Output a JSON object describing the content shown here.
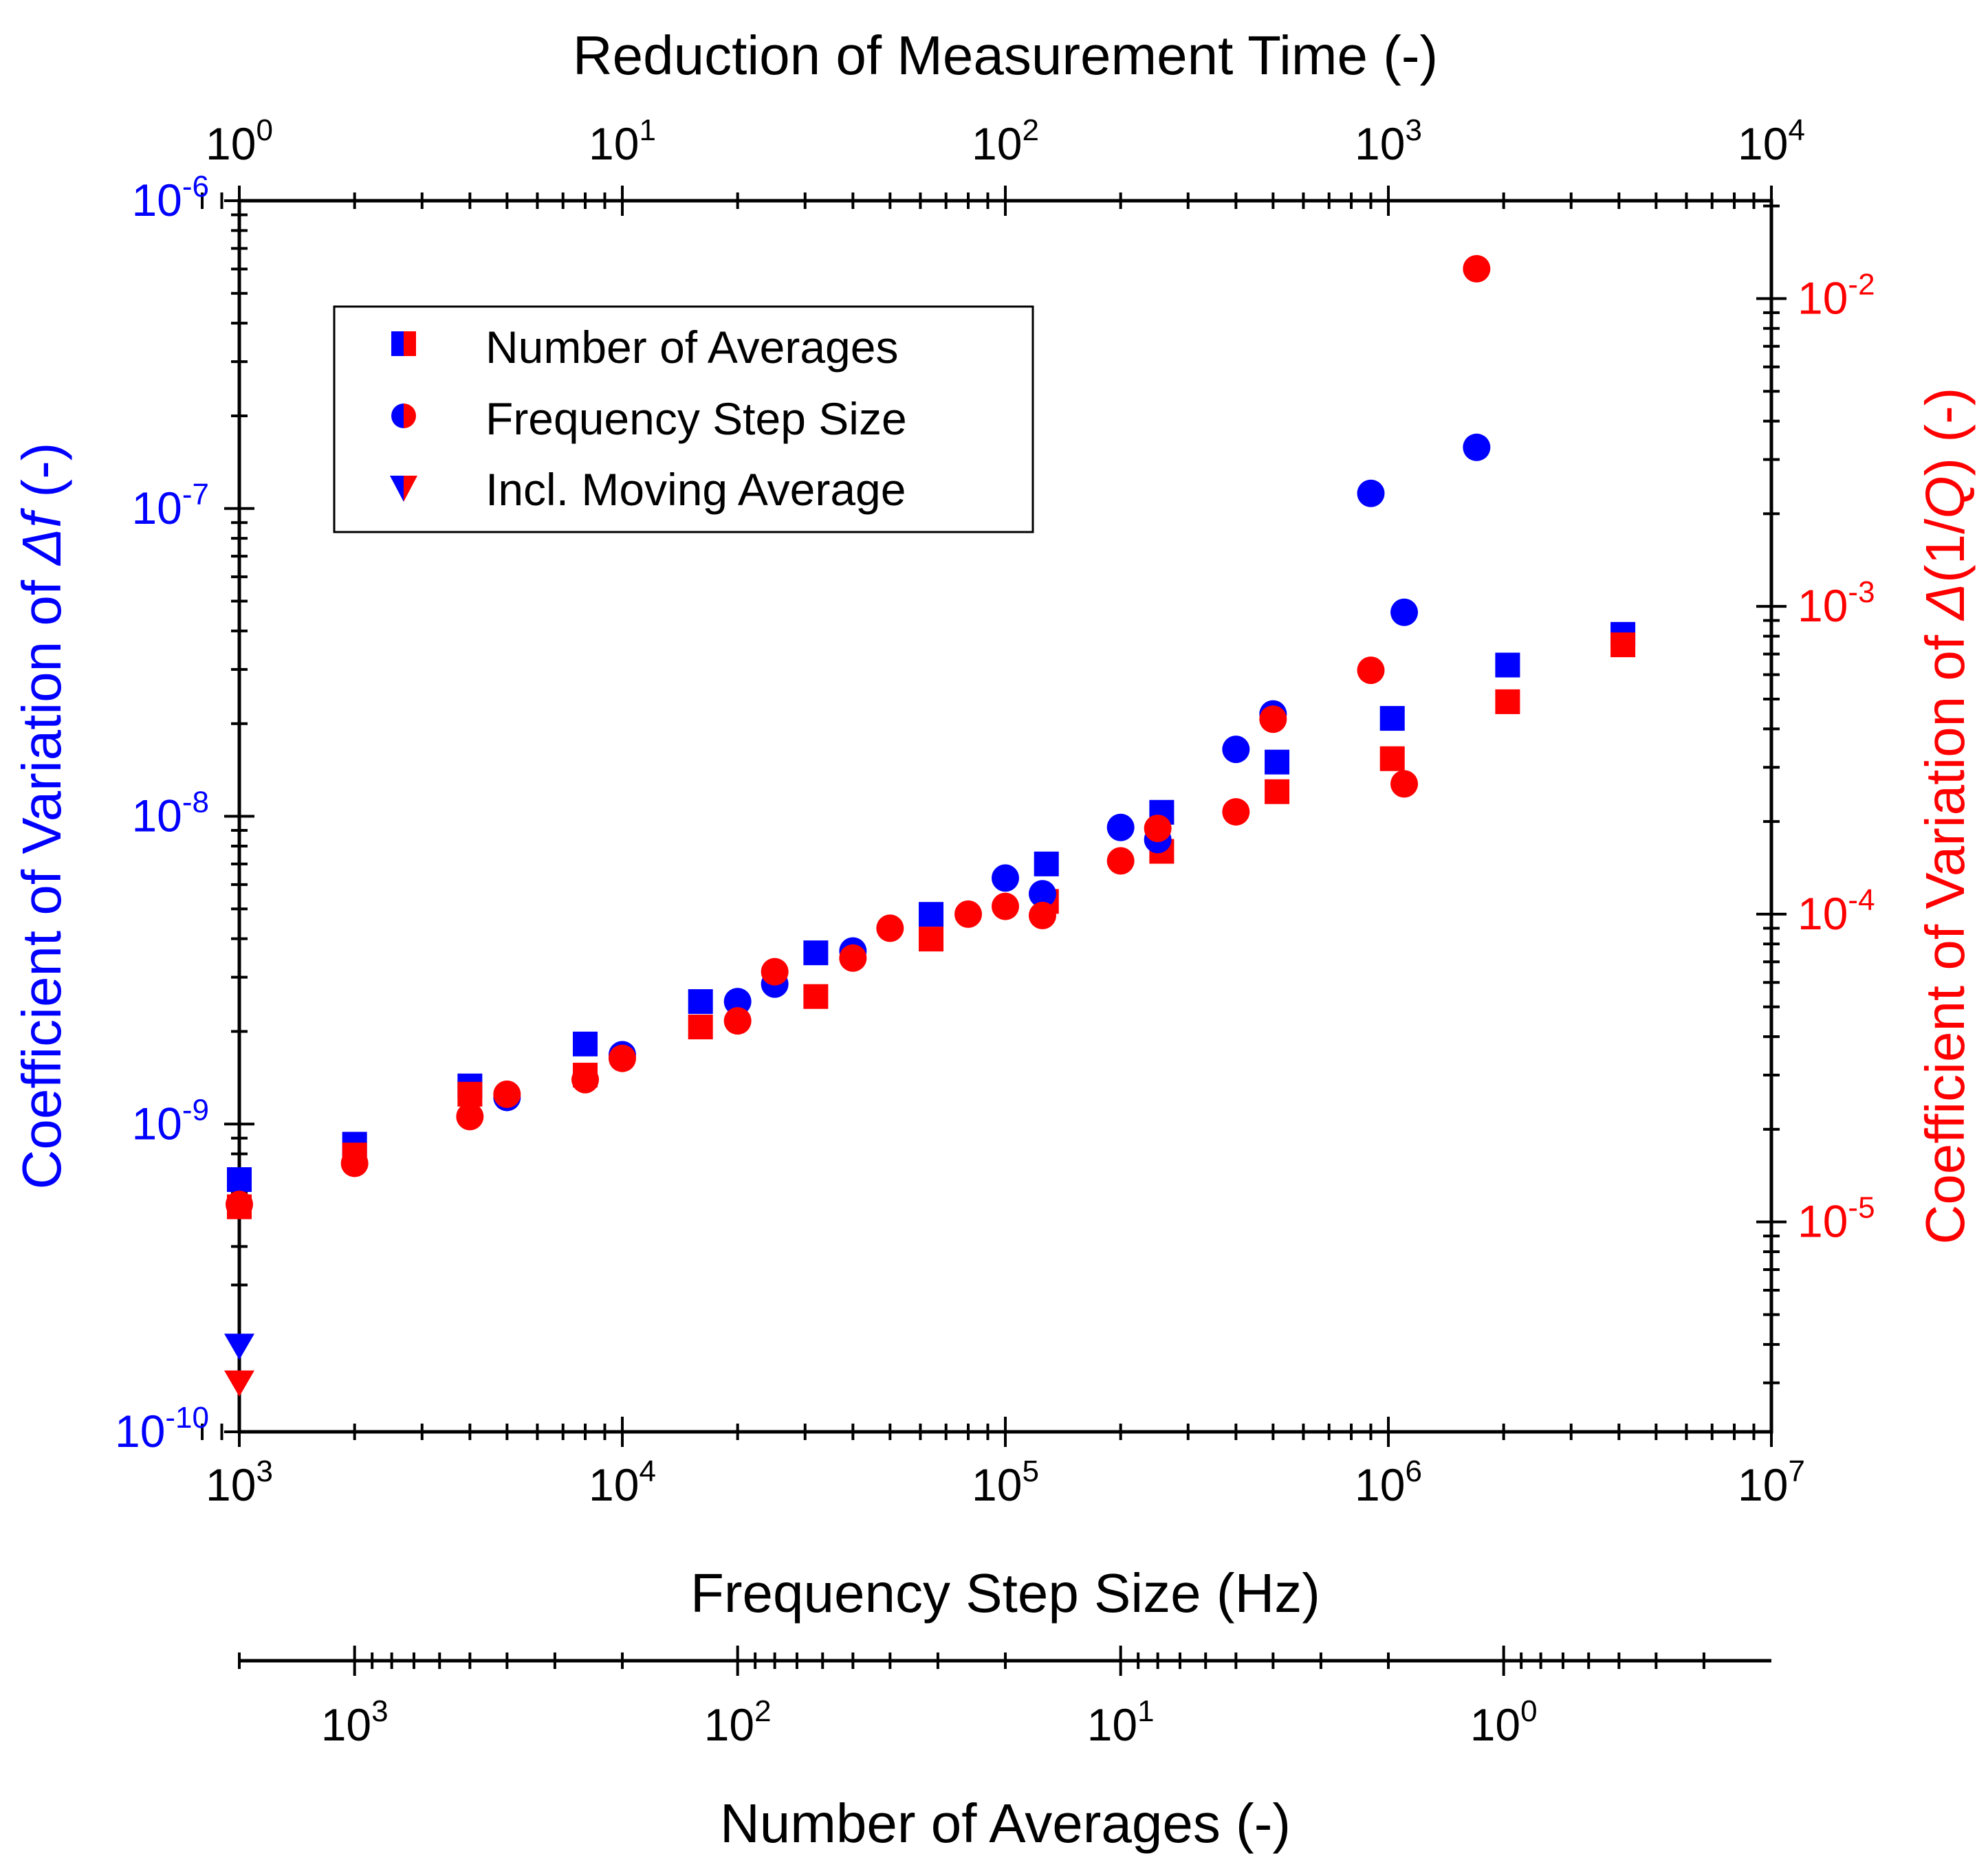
{
  "chart_data": {
    "type": "scatter",
    "colors": {
      "left": "#0000ff",
      "right": "#ff0000",
      "axis": "#000000"
    },
    "top_axis": {
      "title": "Reduction of Measurement Time (-)",
      "scale": "log",
      "range": [
        1,
        10000
      ],
      "ticks": [
        {
          "base": "10",
          "exp": "0"
        },
        {
          "base": "10",
          "exp": "1"
        },
        {
          "base": "10",
          "exp": "2"
        },
        {
          "base": "10",
          "exp": "3"
        },
        {
          "base": "10",
          "exp": "4"
        }
      ]
    },
    "bottom_axis": {
      "title": "Frequency Step Size (Hz)",
      "scale": "log",
      "range": [
        1000,
        10000000
      ],
      "ticks": [
        {
          "base": "10",
          "exp": "3"
        },
        {
          "base": "10",
          "exp": "4"
        },
        {
          "base": "10",
          "exp": "5"
        },
        {
          "base": "10",
          "exp": "6"
        },
        {
          "base": "10",
          "exp": "7"
        }
      ]
    },
    "averages_axis": {
      "title": "Number of Averages (-)",
      "scale": "log",
      "reversed": true,
      "ticks": [
        {
          "base": "10",
          "exp": "3",
          "at_step_hz": 2000
        },
        {
          "base": "10",
          "exp": "2",
          "at_step_hz": 20000
        },
        {
          "base": "10",
          "exp": "1",
          "at_step_hz": 200000
        },
        {
          "base": "10",
          "exp": "0",
          "at_step_hz": 2000000
        }
      ]
    },
    "left_axis": {
      "title_prefix": "Coefficient of Variation of ",
      "title_delta": "Δ",
      "title_var": "f",
      "title_suffix": " (-)",
      "scale": "log",
      "range": [
        1e-10,
        1e-06
      ],
      "ticks": [
        {
          "base": "10",
          "exp": "-6"
        },
        {
          "base": "10",
          "exp": "-7"
        },
        {
          "base": "10",
          "exp": "-8"
        },
        {
          "base": "10",
          "exp": "-9"
        },
        {
          "base": "10",
          "exp": "-10"
        }
      ]
    },
    "right_axis": {
      "title_prefix": "Coefficient of Variation of ",
      "title_delta": "Δ",
      "title_open": "(1/",
      "title_var": "Q",
      "title_close": ")",
      "title_suffix": " (-)",
      "scale": "log",
      "range": [
        2.08e-06,
        0.0208
      ],
      "ticks": [
        {
          "base": "10",
          "exp": "-2"
        },
        {
          "base": "10",
          "exp": "-3"
        },
        {
          "base": "10",
          "exp": "-4"
        },
        {
          "base": "10",
          "exp": "-5"
        }
      ]
    },
    "legend": {
      "placement": "top-left",
      "entries": [
        {
          "label": "Number of Averages",
          "marker": "square"
        },
        {
          "label": "Frequency Step Size",
          "marker": "circle"
        },
        {
          "label": "Incl. Moving Average",
          "marker": "triangle"
        }
      ]
    },
    "series": [
      {
        "name": "Number of Averages",
        "marker": "square",
        "axis": "left",
        "color": "#0000ff",
        "points": [
          [
            1000,
            6.6e-10
          ],
          [
            2000,
            8.6e-10
          ],
          [
            4000,
            1.33e-09
          ],
          [
            8000,
            1.82e-09
          ],
          [
            16000,
            2.5e-09
          ],
          [
            32000,
            3.6e-09
          ],
          [
            64000,
            4.8e-09
          ],
          [
            128000,
            7e-09
          ],
          [
            256000,
            1.03e-08
          ],
          [
            512000,
            1.5e-08
          ],
          [
            1024000,
            2.08e-08
          ],
          [
            2048000,
            3.1e-08
          ],
          [
            4096000,
            3.9e-08
          ]
        ]
      },
      {
        "name": "Number of Averages",
        "marker": "square",
        "axis": "right",
        "color": "#ff0000",
        "points": [
          [
            1000,
            1.12e-05
          ],
          [
            2000,
            1.65e-05
          ],
          [
            4000,
            2.6e-05
          ],
          [
            8000,
            3e-05
          ],
          [
            16000,
            4.3e-05
          ],
          [
            32000,
            5.4e-05
          ],
          [
            64000,
            8.3e-05
          ],
          [
            128000,
            0.00011
          ],
          [
            256000,
            0.00016
          ],
          [
            512000,
            0.00025
          ],
          [
            1024000,
            0.00032
          ],
          [
            2048000,
            0.00049
          ],
          [
            4096000,
            0.00075
          ]
        ]
      },
      {
        "name": "Frequency Step Size",
        "marker": "circle",
        "axis": "left",
        "color": "#0000ff",
        "points": [
          [
            5000,
            1.22e-09
          ],
          [
            10000,
            1.68e-09
          ],
          [
            20000,
            2.5e-09
          ],
          [
            25000,
            2.85e-09
          ],
          [
            40000,
            3.65e-09
          ],
          [
            100000,
            6.3e-09
          ],
          [
            125000,
            5.6e-09
          ],
          [
            200000,
            9.2e-09
          ],
          [
            250000,
            8.4e-09
          ],
          [
            400000,
            1.65e-08
          ],
          [
            500000,
            2.15e-08
          ],
          [
            900000,
            1.12e-07
          ],
          [
            1100000,
            4.6e-08
          ],
          [
            1700000,
            1.58e-07
          ]
        ]
      },
      {
        "name": "Frequency Step Size",
        "marker": "circle",
        "axis": "right",
        "color": "#ff0000",
        "points": [
          [
            1000,
            1.14e-05
          ],
          [
            2000,
            1.55e-05
          ],
          [
            4000,
            2.2e-05
          ],
          [
            5000,
            2.6e-05
          ],
          [
            8000,
            2.9e-05
          ],
          [
            10000,
            3.4e-05
          ],
          [
            20000,
            4.5e-05
          ],
          [
            25000,
            6.5e-05
          ],
          [
            40000,
            7.2e-05
          ],
          [
            50000,
            9e-05
          ],
          [
            80000,
            0.0001
          ],
          [
            100000,
            0.000106
          ],
          [
            125000,
            9.9e-05
          ],
          [
            200000,
            0.000149
          ],
          [
            250000,
            0.00019
          ],
          [
            400000,
            0.000215
          ],
          [
            500000,
            0.00043
          ],
          [
            900000,
            0.00062
          ],
          [
            1100000,
            0.000265
          ],
          [
            1700000,
            0.0125
          ]
        ]
      },
      {
        "name": "Incl. Moving Average",
        "marker": "triangle",
        "axis": "left",
        "color": "#0000ff",
        "points": [
          [
            1000,
            1.9e-10
          ]
        ]
      },
      {
        "name": "Incl. Moving Average",
        "marker": "triangle",
        "axis": "right",
        "color": "#ff0000",
        "points": [
          [
            1000,
            3e-06
          ]
        ]
      }
    ]
  }
}
